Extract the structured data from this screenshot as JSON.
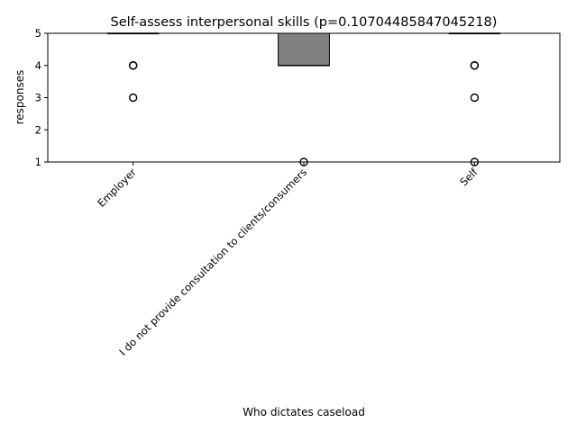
{
  "chart_data": {
    "type": "box",
    "title": "Self-assess interpersonal skills (p=0.10704485847045218)",
    "xlabel": "Who dictates caseload",
    "ylabel": "responses",
    "ylim": [
      1,
      5
    ],
    "yticks": [
      1,
      2,
      3,
      4,
      5
    ],
    "grid": false,
    "categories": [
      "Employer",
      "I do not provide consultation to clients/consumers",
      "Self"
    ],
    "boxes": [
      {
        "category": "Employer",
        "q1": 5,
        "median": 5,
        "q3": 5,
        "whisker_low": 5,
        "whisker_high": 5,
        "fliers": [
          4,
          4,
          3
        ]
      },
      {
        "category": "I do not provide consultation to clients/consumers",
        "q1": 4,
        "median": 4,
        "q3": 5,
        "whisker_low": 4,
        "whisker_high": 5,
        "fliers": [
          1
        ]
      },
      {
        "category": "Self",
        "q1": 5,
        "median": 5,
        "q3": 5,
        "whisker_low": 5,
        "whisker_high": 5,
        "fliers": [
          4,
          4,
          3,
          1
        ]
      }
    ],
    "box_color": "#808080",
    "line_color": "#000000"
  }
}
